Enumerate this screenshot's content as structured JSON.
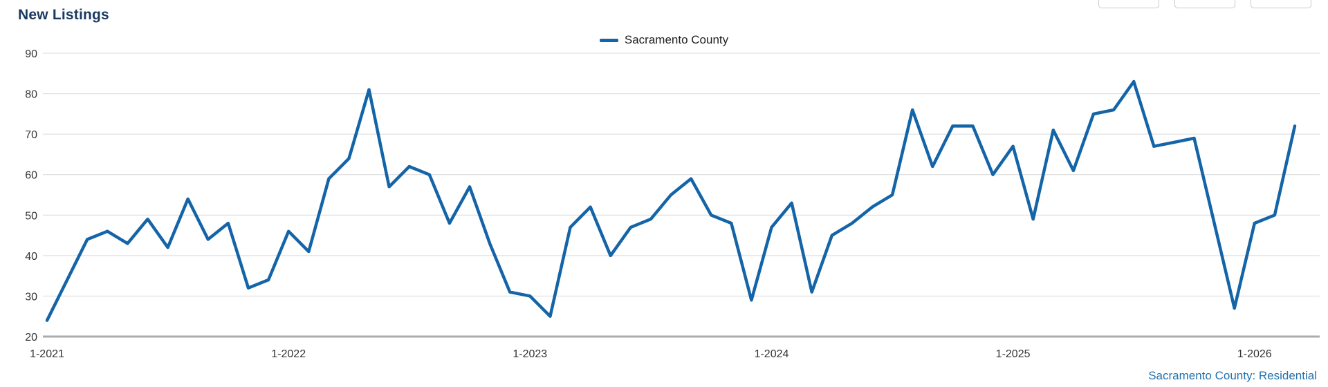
{
  "title": "New Listings",
  "legend": {
    "series_label": "Sacramento County"
  },
  "footer": {
    "label": "Sacramento County: Residential"
  },
  "colors": {
    "line": "#1464A8",
    "title_text": "#1b3a61",
    "footer_text": "#2172AE",
    "grid": "#d9d9d9",
    "axis_line": "#ababab",
    "axis_text": "#333333"
  },
  "chart_data": {
    "type": "line",
    "title": "New Listings",
    "xlabel": "",
    "ylabel": "",
    "ylim": [
      20,
      90
    ],
    "y_ticks": [
      20,
      30,
      40,
      50,
      60,
      70,
      80,
      90
    ],
    "grid": "horizontal",
    "legend_position": "top-center",
    "footnote": "Sacramento County: Residential",
    "x": [
      "1-2021",
      "2-2021",
      "3-2021",
      "4-2021",
      "5-2021",
      "6-2021",
      "7-2021",
      "8-2021",
      "9-2021",
      "10-2021",
      "11-2021",
      "12-2021",
      "1-2022",
      "2-2022",
      "3-2022",
      "4-2022",
      "5-2022",
      "6-2022",
      "7-2022",
      "8-2022",
      "9-2022",
      "10-2022",
      "11-2022",
      "12-2022",
      "1-2023",
      "2-2023",
      "3-2023",
      "4-2023",
      "5-2023",
      "6-2023",
      "7-2023",
      "8-2023",
      "9-2023",
      "10-2023",
      "11-2023",
      "12-2023",
      "1-2024",
      "2-2024",
      "3-2024",
      "4-2024",
      "5-2024",
      "6-2024",
      "7-2024",
      "8-2024",
      "9-2024",
      "10-2024",
      "11-2024",
      "12-2024",
      "1-2025",
      "2-2025",
      "3-2025",
      "4-2025",
      "5-2025",
      "6-2025",
      "7-2025",
      "8-2025",
      "9-2025",
      "10-2025",
      "11-2025",
      "12-2025",
      "1-2026",
      "2-2026",
      "3-2026"
    ],
    "x_tick_labels": [
      "1-2021",
      "1-2022",
      "1-2023",
      "1-2024",
      "1-2025",
      "1-2026"
    ],
    "series": [
      {
        "name": "Sacramento County",
        "color": "#1464A8",
        "values": [
          24,
          34,
          44,
          46,
          43,
          49,
          42,
          54,
          44,
          48,
          32,
          34,
          46,
          41,
          59,
          64,
          81,
          57,
          62,
          60,
          48,
          57,
          43,
          31,
          30,
          25,
          47,
          52,
          40,
          47,
          49,
          55,
          59,
          50,
          48,
          29,
          47,
          53,
          31,
          45,
          48,
          52,
          55,
          76,
          62,
          72,
          72,
          60,
          67,
          49,
          71,
          61,
          75,
          76,
          83,
          67,
          68,
          69,
          48,
          27,
          48,
          50,
          72
        ]
      }
    ]
  }
}
